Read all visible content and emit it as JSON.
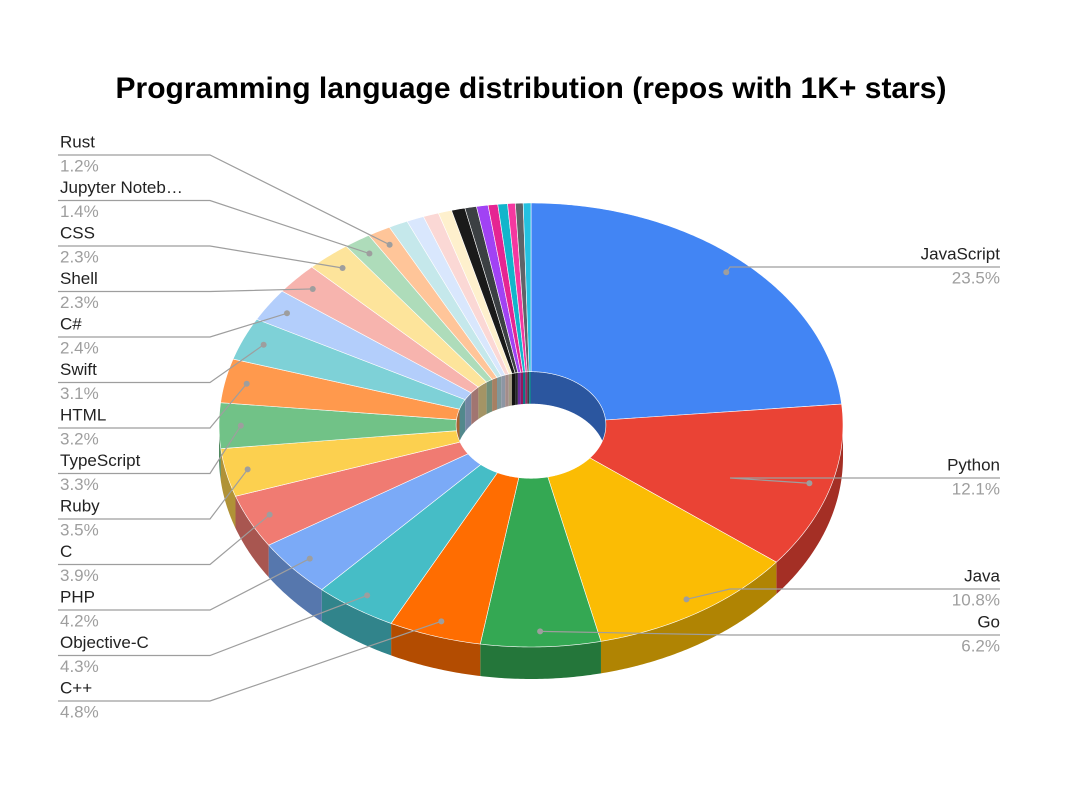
{
  "chart_data": {
    "type": "pie",
    "title": "Programming language distribution (repos with 1K+ stars)",
    "categories": [
      "JavaScript",
      "Python",
      "Java",
      "Go",
      "C++",
      "Objective-C",
      "PHP",
      "C",
      "Ruby",
      "TypeScript",
      "HTML",
      "Swift",
      "C#",
      "Shell",
      "CSS",
      "Jupyter Noteb…",
      "Rust",
      null,
      null,
      null,
      null,
      null,
      null,
      null,
      null,
      null,
      null,
      null,
      null
    ],
    "values": [
      23.5,
      12.1,
      10.8,
      6.2,
      4.8,
      4.3,
      4.2,
      3.9,
      3.5,
      3.3,
      3.2,
      3.1,
      2.4,
      2.3,
      2.3,
      1.4,
      1.2,
      1.0,
      0.9,
      0.8,
      0.7,
      0.7,
      0.6,
      0.6,
      0.5,
      0.5,
      0.4,
      0.4,
      0.4
    ],
    "value_labels": [
      "23.5%",
      "12.1%",
      "10.8%",
      "6.2%",
      "4.8%",
      "4.3%",
      "4.2%",
      "3.9%",
      "3.5%",
      "3.3%",
      "3.2%",
      "3.1%",
      "2.4%",
      "2.3%",
      "2.3%",
      "1.4%",
      "1.2%",
      null,
      null,
      null,
      null,
      null,
      null,
      null,
      null,
      null,
      null,
      null,
      null
    ],
    "colors": [
      "#4285f4",
      "#ea4335",
      "#fbbc04",
      "#34a853",
      "#ff6d01",
      "#46bdc6",
      "#7baaf7",
      "#f07b72",
      "#fcd04f",
      "#71c287",
      "#ff994d",
      "#7ed1d7",
      "#b3cefb",
      "#f7b4ae",
      "#fde49b",
      "#aedcba",
      "#ffc599",
      "#c5e8eb",
      "#d9e7fd",
      "#fbd8d5",
      "#fef0cd",
      "#1a1a1a",
      "#3c4043",
      "#a142f4",
      "#e52592",
      "#12b5cb",
      "#f538a0",
      "#5f6368",
      "#24c1e0"
    ]
  }
}
